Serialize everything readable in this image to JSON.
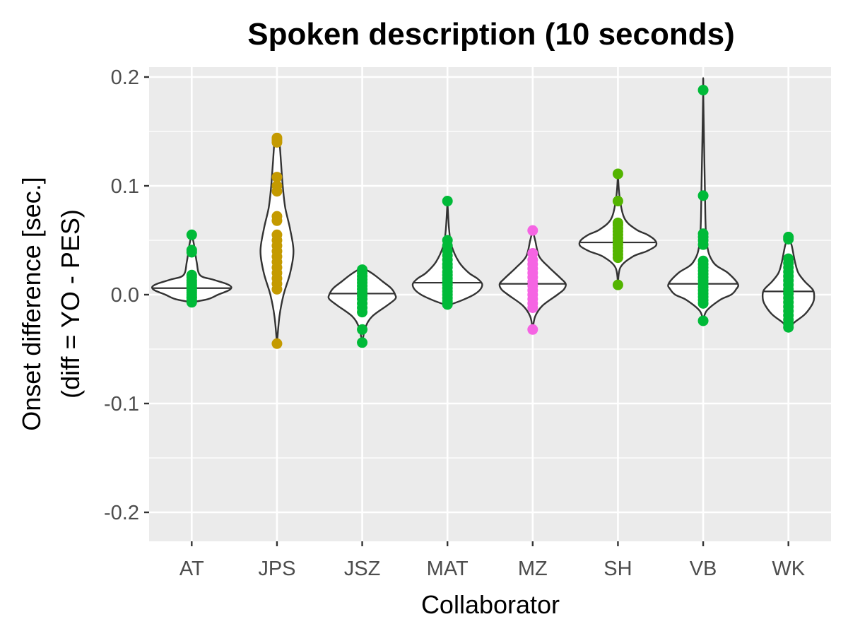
{
  "chart_data": {
    "type": "violin",
    "title": "Spoken description (10 seconds)",
    "xlabel": "Collaborator",
    "ylabel_lines": [
      "Onset difference [sec.]",
      "(diff = YO - PES)"
    ],
    "ylim": [
      -0.225,
      0.2
    ],
    "y_ticks": [
      -0.2,
      -0.1,
      0.0,
      0.1,
      0.2
    ],
    "y_tick_labels": [
      "-0.2",
      "-0.1",
      "0.0",
      "0.1",
      "0.2"
    ],
    "grid": true,
    "legend": "none",
    "categories": [
      "AT",
      "JPS",
      "JSZ",
      "MAT",
      "MZ",
      "SH",
      "VB",
      "WK"
    ],
    "groups": [
      {
        "name": "AT",
        "color": "#00BA38",
        "violin": [
          [
            -0.007,
            0.0
          ],
          [
            -0.004,
            0.02
          ],
          [
            0.0,
            0.032
          ],
          [
            0.004,
            0.045
          ],
          [
            0.007,
            0.048
          ],
          [
            0.01,
            0.042
          ],
          [
            0.014,
            0.025
          ],
          [
            0.018,
            0.01
          ],
          [
            0.03,
            0.006
          ],
          [
            0.045,
            0.003
          ],
          [
            0.056,
            0.0
          ]
        ],
        "median": 0.006,
        "points": [
          -0.007,
          -0.005,
          -0.003,
          -0.002,
          0.0,
          0.002,
          0.004,
          0.006,
          0.007,
          0.009,
          0.011,
          0.013,
          0.016,
          0.018,
          0.039,
          0.041,
          0.055
        ]
      },
      {
        "name": "JPS",
        "color": "#C49A00",
        "violin": [
          [
            -0.045,
            0.0
          ],
          [
            -0.02,
            0.003
          ],
          [
            0.0,
            0.008
          ],
          [
            0.02,
            0.016
          ],
          [
            0.04,
            0.02
          ],
          [
            0.06,
            0.016
          ],
          [
            0.08,
            0.01
          ],
          [
            0.1,
            0.007
          ],
          [
            0.12,
            0.005
          ],
          [
            0.14,
            0.003
          ],
          [
            0.145,
            0.0
          ]
        ],
        "median": null,
        "points": [
          -0.045,
          0.005,
          0.01,
          0.015,
          0.02,
          0.025,
          0.03,
          0.035,
          0.04,
          0.045,
          0.05,
          0.055,
          0.068,
          0.072,
          0.095,
          0.1,
          0.108,
          0.14,
          0.142,
          0.144
        ]
      },
      {
        "name": "JSZ",
        "color": "#00BA38",
        "violin": [
          [
            -0.044,
            0.0
          ],
          [
            -0.03,
            0.004
          ],
          [
            -0.02,
            0.012
          ],
          [
            -0.01,
            0.03
          ],
          [
            -0.004,
            0.04
          ],
          [
            0.0,
            0.04
          ],
          [
            0.006,
            0.035
          ],
          [
            0.012,
            0.025
          ],
          [
            0.018,
            0.015
          ],
          [
            0.022,
            0.007
          ],
          [
            0.025,
            0.0
          ]
        ],
        "median": 0.001,
        "points": [
          -0.044,
          -0.032,
          -0.016,
          -0.012,
          -0.008,
          -0.004,
          -0.001,
          0.002,
          0.005,
          0.008,
          0.011,
          0.014,
          0.017,
          0.02,
          0.023
        ]
      },
      {
        "name": "MAT",
        "color": "#00BA38",
        "violin": [
          [
            -0.01,
            0.0
          ],
          [
            -0.005,
            0.018
          ],
          [
            0.0,
            0.032
          ],
          [
            0.005,
            0.04
          ],
          [
            0.01,
            0.042
          ],
          [
            0.015,
            0.036
          ],
          [
            0.02,
            0.026
          ],
          [
            0.03,
            0.014
          ],
          [
            0.045,
            0.005
          ],
          [
            0.06,
            0.002
          ],
          [
            0.085,
            0.0
          ]
        ],
        "median": 0.011,
        "points": [
          -0.009,
          -0.006,
          -0.003,
          0.0,
          0.003,
          0.006,
          0.009,
          0.012,
          0.015,
          0.018,
          0.021,
          0.025,
          0.028,
          0.032,
          0.036,
          0.04,
          0.045,
          0.05,
          0.086
        ]
      },
      {
        "name": "MZ",
        "color": "#F564E3",
        "violin": [
          [
            -0.032,
            0.0
          ],
          [
            -0.02,
            0.003
          ],
          [
            -0.01,
            0.012
          ],
          [
            0.0,
            0.03
          ],
          [
            0.005,
            0.038
          ],
          [
            0.01,
            0.04
          ],
          [
            0.015,
            0.034
          ],
          [
            0.025,
            0.02
          ],
          [
            0.035,
            0.008
          ],
          [
            0.05,
            0.003
          ],
          [
            0.059,
            0.0
          ]
        ],
        "median": 0.01,
        "points": [
          -0.032,
          -0.012,
          -0.008,
          -0.004,
          0.0,
          0.004,
          0.008,
          0.012,
          0.016,
          0.02,
          0.024,
          0.028,
          0.032,
          0.038,
          0.059
        ]
      },
      {
        "name": "SH",
        "color": "#53B400",
        "violin": [
          [
            0.009,
            0.0
          ],
          [
            0.025,
            0.003
          ],
          [
            0.035,
            0.018
          ],
          [
            0.04,
            0.035
          ],
          [
            0.045,
            0.046
          ],
          [
            0.05,
            0.045
          ],
          [
            0.055,
            0.036
          ],
          [
            0.06,
            0.022
          ],
          [
            0.07,
            0.008
          ],
          [
            0.09,
            0.002
          ],
          [
            0.111,
            0.0
          ]
        ],
        "median": 0.048,
        "points": [
          0.009,
          0.034,
          0.037,
          0.04,
          0.043,
          0.046,
          0.049,
          0.052,
          0.055,
          0.058,
          0.061,
          0.064,
          0.066,
          0.086,
          0.111
        ]
      },
      {
        "name": "VB",
        "color": "#00BA38",
        "violin": [
          [
            -0.025,
            0.0
          ],
          [
            -0.015,
            0.004
          ],
          [
            -0.005,
            0.02
          ],
          [
            0.0,
            0.034
          ],
          [
            0.005,
            0.04
          ],
          [
            0.01,
            0.042
          ],
          [
            0.02,
            0.03
          ],
          [
            0.03,
            0.012
          ],
          [
            0.05,
            0.004
          ],
          [
            0.1,
            0.002
          ],
          [
            0.188,
            0.0
          ]
        ],
        "median": 0.01,
        "points": [
          -0.024,
          -0.008,
          -0.005,
          -0.002,
          0.001,
          0.004,
          0.007,
          0.01,
          0.013,
          0.016,
          0.019,
          0.022,
          0.025,
          0.028,
          0.031,
          0.046,
          0.05,
          0.053,
          0.056,
          0.091,
          0.188
        ]
      },
      {
        "name": "WK",
        "color": "#00BA38",
        "violin": [
          [
            -0.03,
            0.0
          ],
          [
            -0.025,
            0.008
          ],
          [
            -0.018,
            0.02
          ],
          [
            -0.01,
            0.028
          ],
          [
            -0.004,
            0.031
          ],
          [
            0.004,
            0.03
          ],
          [
            0.012,
            0.02
          ],
          [
            0.02,
            0.012
          ],
          [
            0.03,
            0.008
          ],
          [
            0.045,
            0.004
          ],
          [
            0.054,
            0.0
          ]
        ],
        "median": 0.003,
        "points": [
          -0.03,
          -0.027,
          -0.023,
          -0.019,
          -0.015,
          -0.011,
          -0.007,
          -0.003,
          0.001,
          0.005,
          0.009,
          0.013,
          0.017,
          0.021,
          0.025,
          0.029,
          0.033,
          0.051,
          0.053
        ]
      }
    ]
  }
}
